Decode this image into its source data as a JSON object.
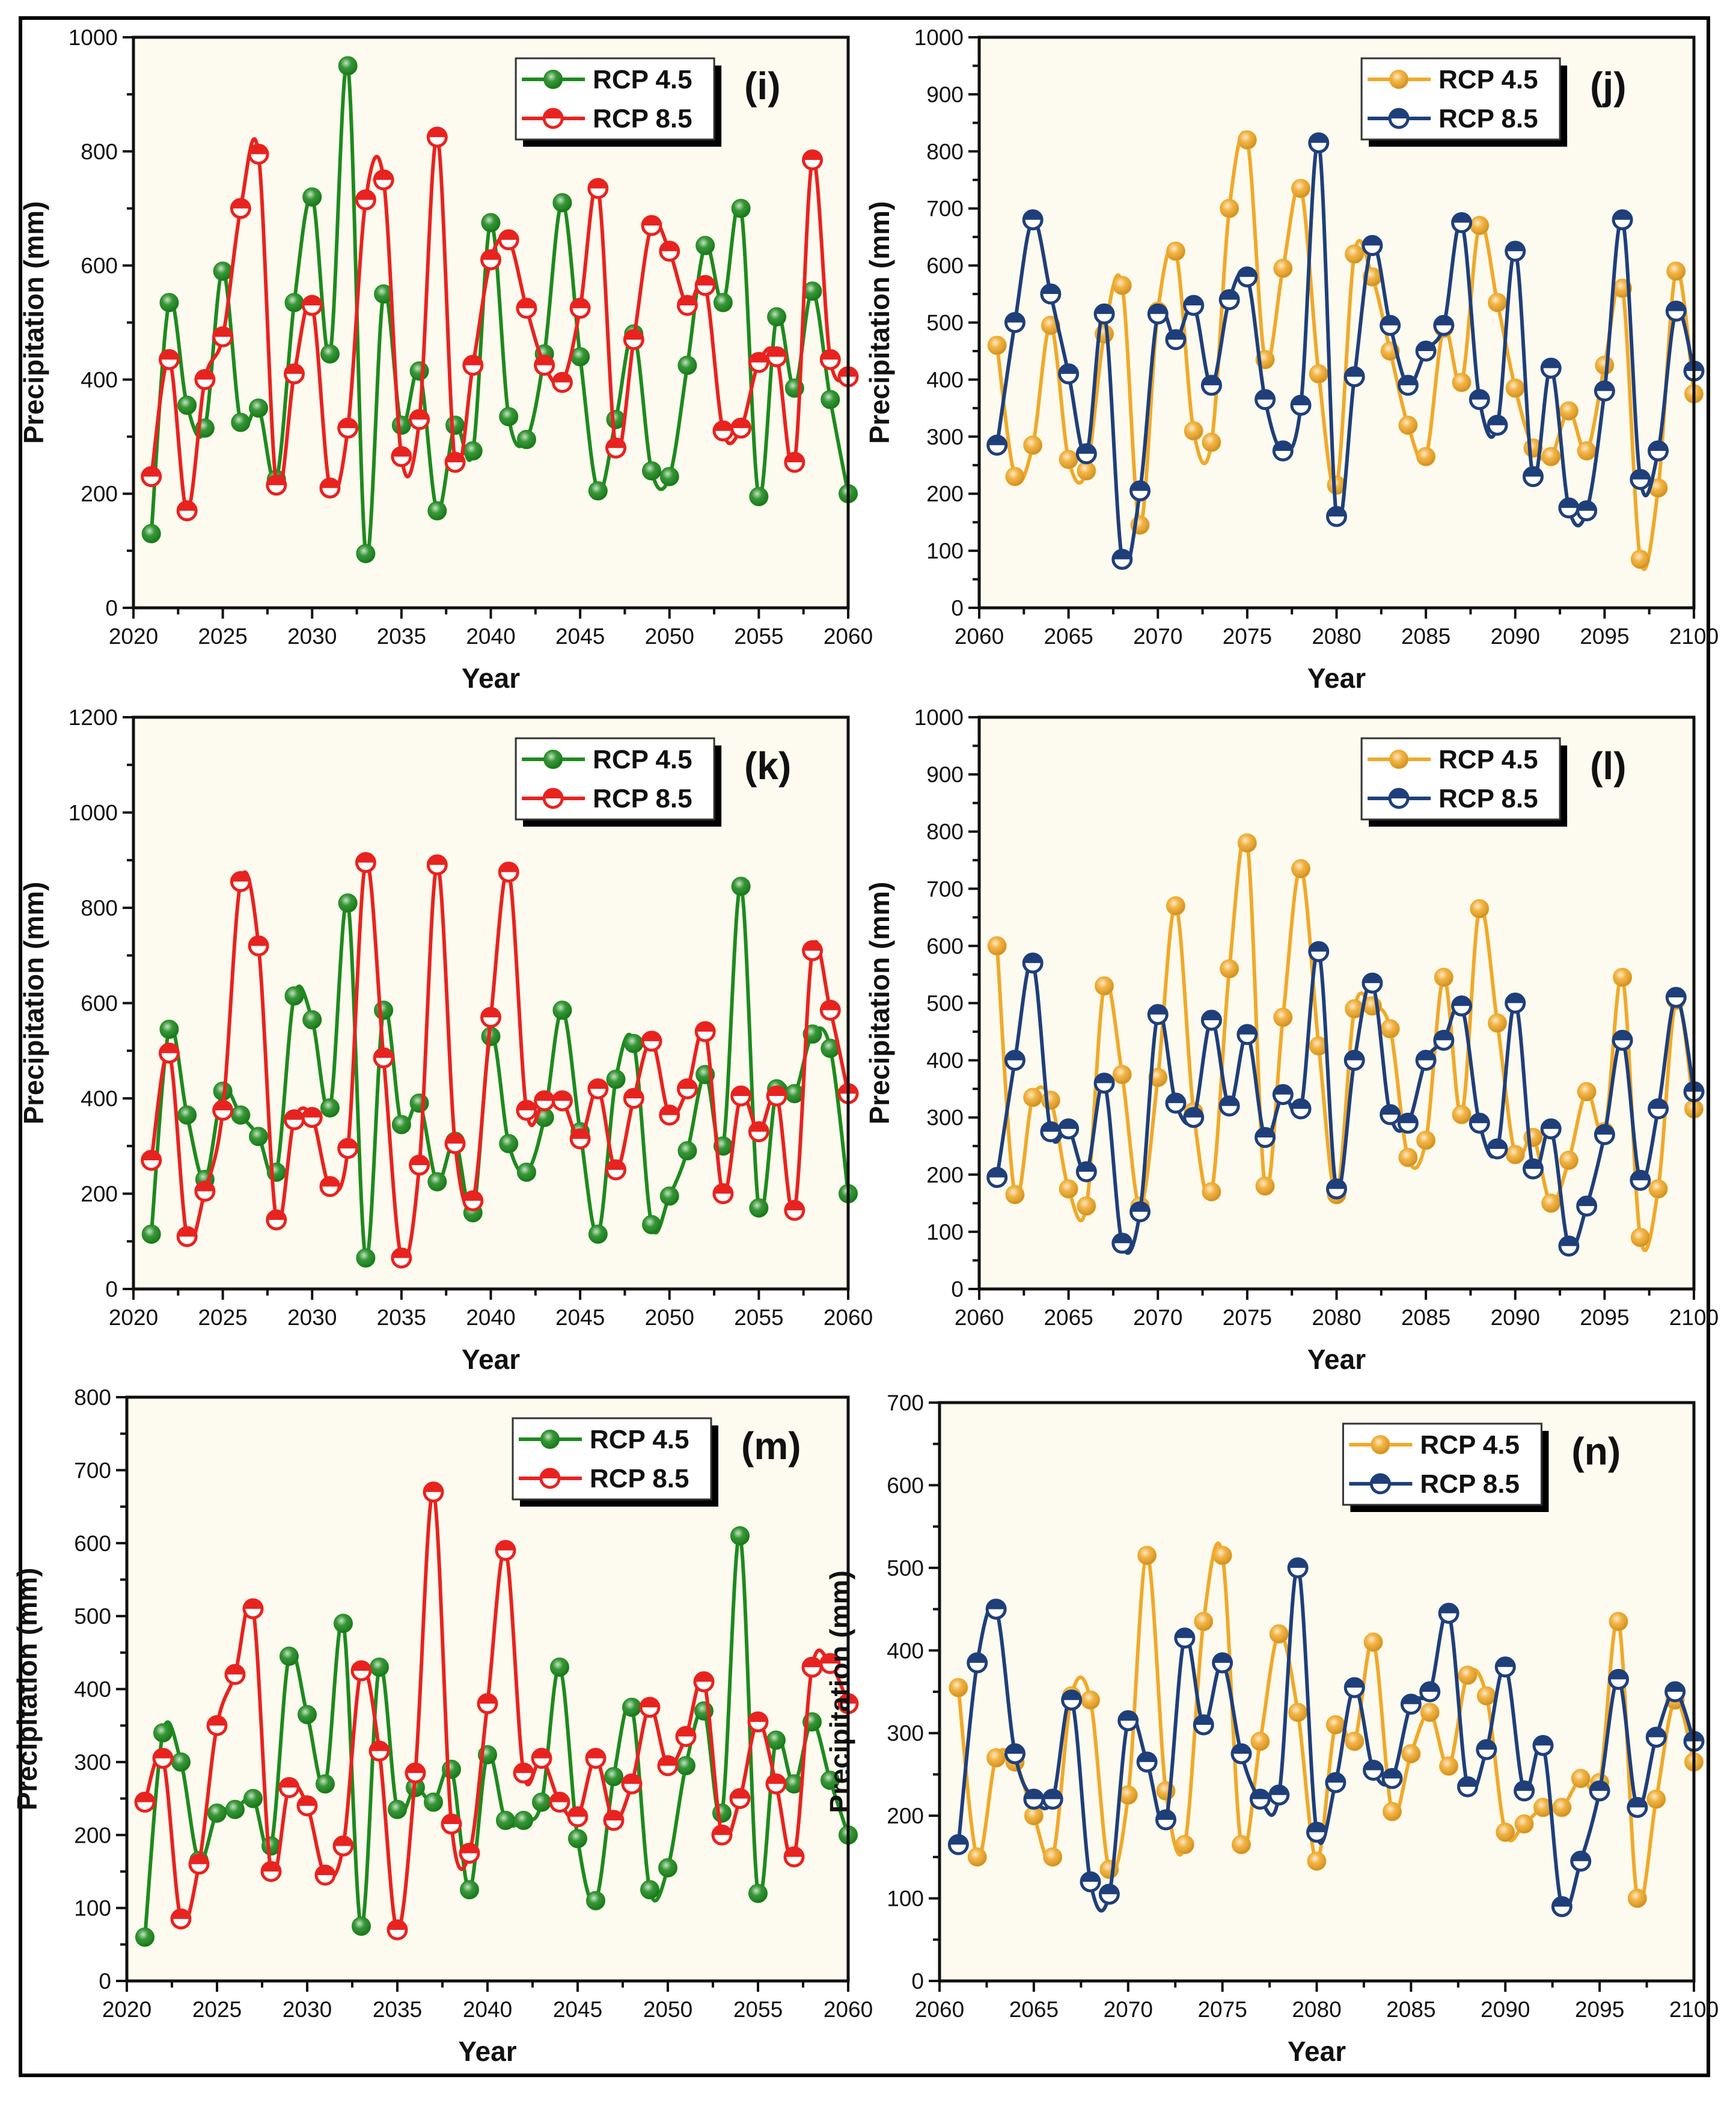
{
  "chart_data": [
    {
      "type": "line",
      "panel_label": "(i)",
      "xlabel": "Year",
      "ylabel": "Precipitation (mm)",
      "xlim": [
        2020,
        2060
      ],
      "ylim": [
        0,
        1000
      ],
      "ystep": 200,
      "xticks": [
        2020,
        2025,
        2030,
        2035,
        2040,
        2045,
        2050,
        2055,
        2060
      ],
      "legend_position": "top-right",
      "grid": false,
      "x": [
        2021,
        2022,
        2023,
        2024,
        2025,
        2026,
        2027,
        2028,
        2029,
        2030,
        2031,
        2032,
        2033,
        2034,
        2035,
        2036,
        2037,
        2038,
        2039,
        2040,
        2041,
        2042,
        2043,
        2044,
        2045,
        2046,
        2047,
        2048,
        2049,
        2050,
        2051,
        2052,
        2053,
        2054,
        2055,
        2056,
        2057,
        2058,
        2059,
        2060
      ],
      "series": [
        {
          "name": "RCP 4.5",
          "color": "#1e8a1e",
          "marker": "filled",
          "values": [
            130,
            535,
            355,
            315,
            590,
            325,
            350,
            225,
            535,
            720,
            445,
            950,
            95,
            550,
            320,
            415,
            170,
            320,
            275,
            675,
            335,
            295,
            445,
            710,
            440,
            205,
            330,
            480,
            240,
            230,
            425,
            635,
            535,
            700,
            195,
            510,
            385,
            555,
            365,
            200
          ]
        },
        {
          "name": "RCP 8.5",
          "color": "#e8231f",
          "marker": "half",
          "values": [
            230,
            435,
            170,
            400,
            475,
            700,
            795,
            215,
            410,
            530,
            210,
            315,
            715,
            750,
            265,
            330,
            825,
            255,
            425,
            610,
            645,
            525,
            425,
            395,
            525,
            735,
            280,
            470,
            670,
            625,
            530,
            565,
            310,
            315,
            430,
            440,
            255,
            785,
            435,
            405
          ]
        }
      ]
    },
    {
      "type": "line",
      "panel_label": "(j)",
      "xlabel": "Year",
      "ylabel": "Precipitation (mm)",
      "xlim": [
        2060,
        2100
      ],
      "ylim": [
        0,
        1000
      ],
      "ystep": 100,
      "xticks": [
        2060,
        2065,
        2070,
        2075,
        2080,
        2085,
        2090,
        2095,
        2100
      ],
      "legend_position": "top-right",
      "grid": false,
      "x": [
        2061,
        2062,
        2063,
        2064,
        2065,
        2066,
        2067,
        2068,
        2069,
        2070,
        2071,
        2072,
        2073,
        2074,
        2075,
        2076,
        2077,
        2078,
        2079,
        2080,
        2081,
        2082,
        2083,
        2084,
        2085,
        2086,
        2087,
        2088,
        2089,
        2090,
        2091,
        2092,
        2093,
        2094,
        2095,
        2096,
        2097,
        2098,
        2099,
        2100
      ],
      "series": [
        {
          "name": "RCP 4.5",
          "color": "#f0a92a",
          "marker": "filled",
          "values": [
            460,
            230,
            285,
            495,
            260,
            240,
            480,
            565,
            145,
            520,
            625,
            310,
            290,
            700,
            820,
            435,
            595,
            735,
            410,
            215,
            620,
            580,
            450,
            320,
            265,
            490,
            395,
            670,
            535,
            385,
            280,
            265,
            345,
            275,
            425,
            560,
            85,
            210,
            590,
            375
          ]
        },
        {
          "name": "RCP 8.5",
          "color": "#1f3f7a",
          "marker": "half",
          "values": [
            285,
            500,
            680,
            550,
            410,
            270,
            515,
            85,
            205,
            515,
            470,
            530,
            390,
            540,
            580,
            365,
            275,
            355,
            815,
            160,
            405,
            635,
            495,
            390,
            450,
            495,
            675,
            365,
            320,
            625,
            230,
            420,
            175,
            170,
            380,
            680,
            225,
            275,
            520,
            415
          ]
        }
      ]
    },
    {
      "type": "line",
      "panel_label": "(k)",
      "xlabel": "Year",
      "ylabel": "Precipitation (mm)",
      "xlim": [
        2020,
        2060
      ],
      "ylim": [
        0,
        1200
      ],
      "ystep": 200,
      "xticks": [
        2020,
        2025,
        2030,
        2035,
        2040,
        2045,
        2050,
        2055,
        2060
      ],
      "legend_position": "top-right",
      "grid": false,
      "x": [
        2021,
        2022,
        2023,
        2024,
        2025,
        2026,
        2027,
        2028,
        2029,
        2030,
        2031,
        2032,
        2033,
        2034,
        2035,
        2036,
        2037,
        2038,
        2039,
        2040,
        2041,
        2042,
        2043,
        2044,
        2045,
        2046,
        2047,
        2048,
        2049,
        2050,
        2051,
        2052,
        2053,
        2054,
        2055,
        2056,
        2057,
        2058,
        2059,
        2060
      ],
      "series": [
        {
          "name": "RCP 4.5",
          "color": "#1e8a1e",
          "marker": "filled",
          "values": [
            115,
            545,
            365,
            230,
            415,
            365,
            320,
            245,
            615,
            565,
            380,
            810,
            65,
            585,
            345,
            390,
            225,
            310,
            160,
            530,
            305,
            245,
            360,
            585,
            330,
            115,
            440,
            515,
            135,
            195,
            290,
            450,
            300,
            845,
            170,
            420,
            410,
            535,
            505,
            200
          ]
        },
        {
          "name": "RCP 8.5",
          "color": "#e8231f",
          "marker": "half",
          "values": [
            270,
            495,
            110,
            205,
            375,
            855,
            720,
            145,
            355,
            360,
            215,
            295,
            895,
            485,
            65,
            260,
            890,
            305,
            185,
            570,
            875,
            375,
            395,
            395,
            315,
            420,
            250,
            400,
            520,
            365,
            420,
            540,
            200,
            405,
            330,
            405,
            165,
            710,
            585,
            410
          ]
        }
      ]
    },
    {
      "type": "line",
      "panel_label": "(l)",
      "xlabel": "Year",
      "ylabel": "Precipitation (mm)",
      "xlim": [
        2060,
        2100
      ],
      "ylim": [
        0,
        1000
      ],
      "ystep": 100,
      "xticks": [
        2060,
        2065,
        2070,
        2075,
        2080,
        2085,
        2090,
        2095,
        2100
      ],
      "legend_position": "top-right",
      "grid": false,
      "x": [
        2061,
        2062,
        2063,
        2064,
        2065,
        2066,
        2067,
        2068,
        2069,
        2070,
        2071,
        2072,
        2073,
        2074,
        2075,
        2076,
        2077,
        2078,
        2079,
        2080,
        2081,
        2082,
        2083,
        2084,
        2085,
        2086,
        2087,
        2088,
        2089,
        2090,
        2091,
        2092,
        2093,
        2094,
        2095,
        2096,
        2097,
        2098,
        2099,
        2100
      ],
      "series": [
        {
          "name": "RCP 4.5",
          "color": "#f0a92a",
          "marker": "filled",
          "values": [
            600,
            165,
            335,
            330,
            175,
            145,
            530,
            375,
            145,
            370,
            670,
            310,
            170,
            560,
            780,
            180,
            475,
            735,
            425,
            165,
            490,
            495,
            455,
            230,
            260,
            545,
            305,
            665,
            465,
            235,
            265,
            150,
            225,
            345,
            275,
            545,
            90,
            175,
            505,
            315
          ]
        },
        {
          "name": "RCP 8.5",
          "color": "#1f3f7a",
          "marker": "half",
          "values": [
            195,
            400,
            570,
            275,
            280,
            205,
            360,
            80,
            135,
            480,
            325,
            300,
            470,
            320,
            445,
            265,
            340,
            315,
            590,
            175,
            400,
            535,
            305,
            290,
            400,
            435,
            495,
            290,
            245,
            500,
            210,
            280,
            75,
            145,
            270,
            435,
            190,
            315,
            510,
            345
          ]
        }
      ]
    },
    {
      "type": "line",
      "panel_label": "(m)",
      "xlabel": "Year",
      "ylabel": "Precipitation (mm)",
      "xlim": [
        2020,
        2060
      ],
      "ylim": [
        0,
        800
      ],
      "ystep": 100,
      "xticks": [
        2020,
        2025,
        2030,
        2035,
        2040,
        2045,
        2050,
        2055,
        2060
      ],
      "legend_position": "top-right",
      "grid": false,
      "x": [
        2021,
        2022,
        2023,
        2024,
        2025,
        2026,
        2027,
        2028,
        2029,
        2030,
        2031,
        2032,
        2033,
        2034,
        2035,
        2036,
        2037,
        2038,
        2039,
        2040,
        2041,
        2042,
        2043,
        2044,
        2045,
        2046,
        2047,
        2048,
        2049,
        2050,
        2051,
        2052,
        2053,
        2054,
        2055,
        2056,
        2057,
        2058,
        2059,
        2060
      ],
      "series": [
        {
          "name": "RCP 4.5",
          "color": "#1e8a1e",
          "marker": "filled",
          "values": [
            60,
            340,
            300,
            165,
            230,
            235,
            250,
            185,
            445,
            365,
            270,
            490,
            75,
            430,
            235,
            265,
            245,
            290,
            125,
            310,
            220,
            220,
            245,
            430,
            195,
            110,
            280,
            375,
            125,
            155,
            295,
            370,
            230,
            610,
            120,
            330,
            270,
            355,
            275,
            200
          ]
        },
        {
          "name": "RCP 8.5",
          "color": "#e8231f",
          "marker": "half",
          "values": [
            245,
            305,
            85,
            160,
            350,
            420,
            510,
            150,
            265,
            240,
            145,
            185,
            425,
            315,
            70,
            285,
            670,
            215,
            175,
            380,
            590,
            285,
            305,
            245,
            225,
            305,
            220,
            270,
            375,
            295,
            335,
            410,
            200,
            250,
            355,
            270,
            170,
            430,
            435,
            380
          ]
        }
      ]
    },
    {
      "type": "line",
      "panel_label": "(n)",
      "xlabel": "Year",
      "ylabel": "Precipitation (mm)",
      "xlim": [
        2060,
        2100
      ],
      "ylim": [
        0,
        700
      ],
      "ystep": 100,
      "xticks": [
        2060,
        2065,
        2070,
        2075,
        2080,
        2085,
        2090,
        2095,
        2100
      ],
      "legend_position": "top-right",
      "grid": false,
      "x": [
        2061,
        2062,
        2063,
        2064,
        2065,
        2066,
        2067,
        2068,
        2069,
        2070,
        2071,
        2072,
        2073,
        2074,
        2075,
        2076,
        2077,
        2078,
        2079,
        2080,
        2081,
        2082,
        2083,
        2084,
        2085,
        2086,
        2087,
        2088,
        2089,
        2090,
        2091,
        2092,
        2093,
        2094,
        2095,
        2096,
        2097,
        2098,
        2099,
        2100
      ],
      "series": [
        {
          "name": "RCP 4.5",
          "color": "#f0a92a",
          "marker": "filled",
          "values": [
            355,
            150,
            270,
            265,
            200,
            150,
            345,
            340,
            135,
            225,
            515,
            230,
            165,
            435,
            515,
            165,
            290,
            420,
            325,
            145,
            310,
            290,
            410,
            205,
            275,
            325,
            260,
            370,
            345,
            180,
            190,
            210,
            210,
            245,
            240,
            435,
            100,
            220,
            340,
            265
          ]
        },
        {
          "name": "RCP 8.5",
          "color": "#1f3f7a",
          "marker": "half",
          "values": [
            165,
            385,
            450,
            275,
            220,
            220,
            340,
            120,
            105,
            315,
            265,
            195,
            415,
            310,
            385,
            275,
            220,
            225,
            500,
            180,
            240,
            355,
            255,
            245,
            335,
            350,
            445,
            235,
            280,
            380,
            230,
            285,
            90,
            145,
            230,
            365,
            210,
            295,
            350,
            290
          ]
        }
      ]
    }
  ]
}
